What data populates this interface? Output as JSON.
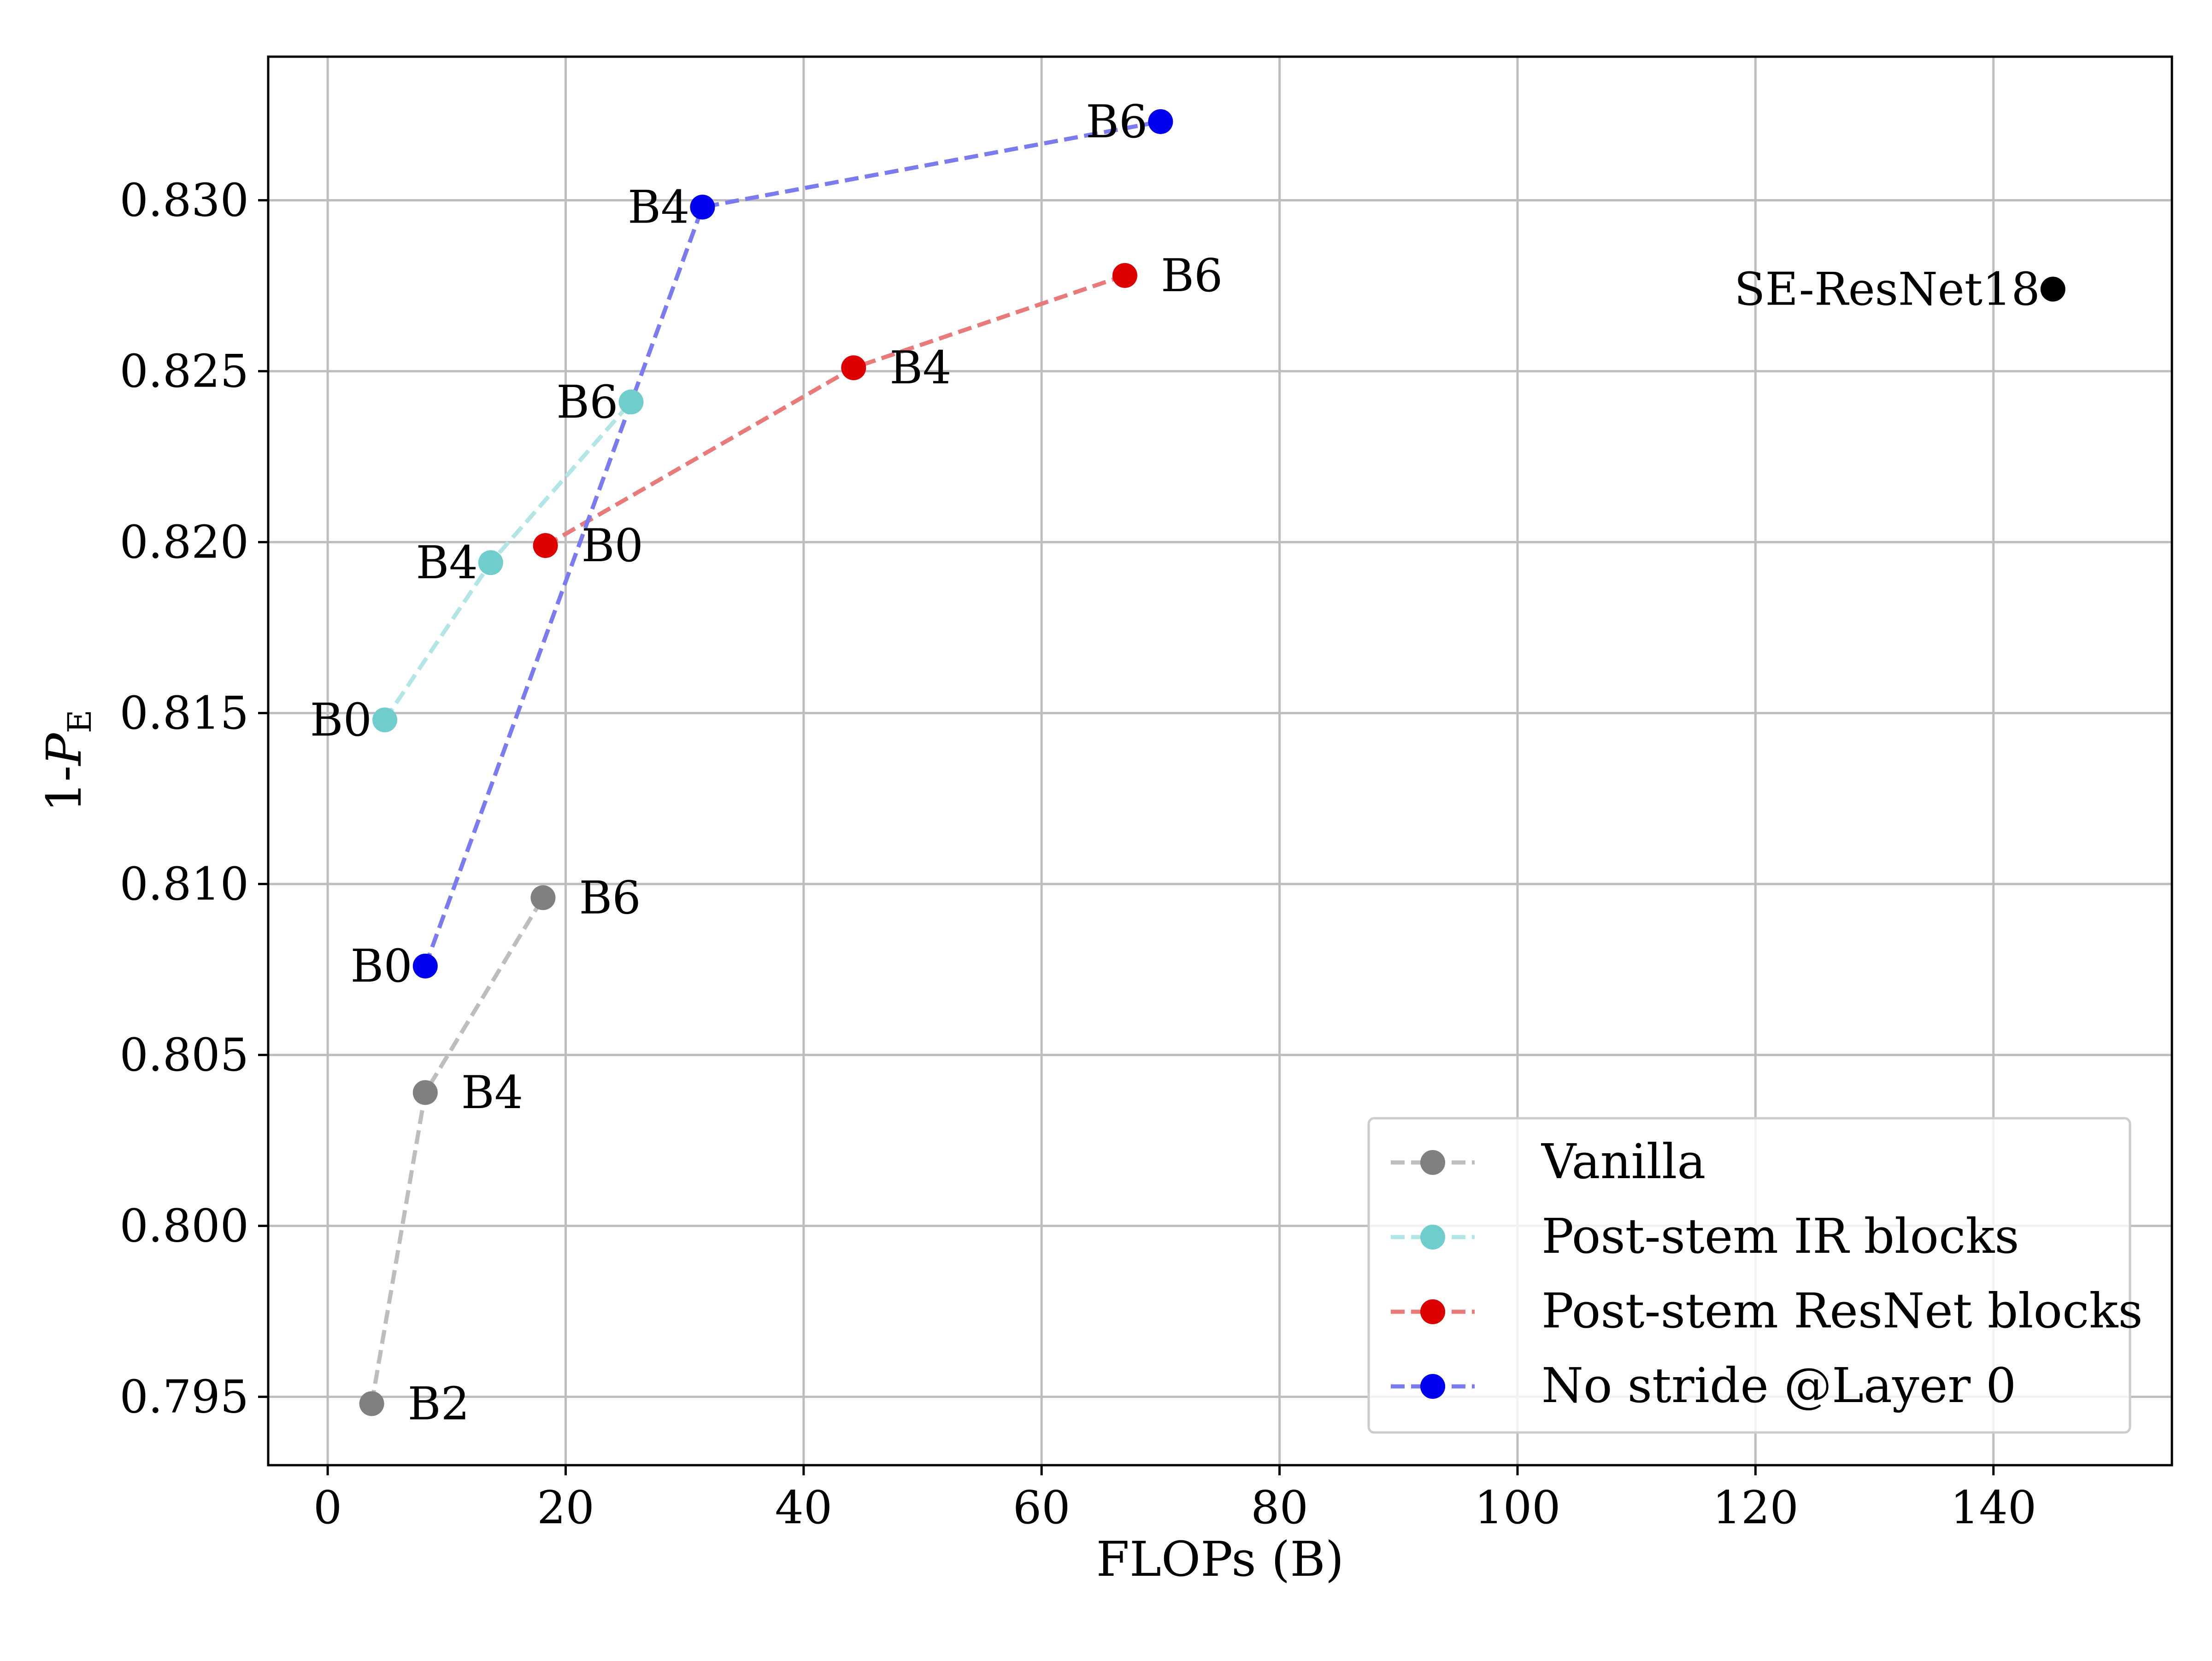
{
  "chart_data": {
    "type": "line",
    "title": "",
    "xlabel": "FLOPs (B)",
    "ylabel_prefix": "1-",
    "ylabel_var": "P",
    "ylabel_sub": "E",
    "xlim": [
      -5,
      155
    ],
    "ylim": [
      0.793,
      0.8342
    ],
    "xticks": [
      0,
      20,
      40,
      60,
      80,
      100,
      120,
      140
    ],
    "xtick_labels": [
      "0",
      "20",
      "40",
      "60",
      "80",
      "100",
      "120",
      "140"
    ],
    "yticks": [
      0.795,
      0.8,
      0.805,
      0.81,
      0.815,
      0.82,
      0.825,
      0.83
    ],
    "ytick_labels": [
      "0.795",
      "0.800",
      "0.805",
      "0.810",
      "0.815",
      "0.820",
      "0.825",
      "0.830"
    ],
    "grid": true,
    "legend_position": "bottom-right",
    "series": [
      {
        "name": "Vanilla",
        "line_color": "#bdbdbd",
        "marker_color": "#808080",
        "points": [
          {
            "x": 3.7,
            "y": 0.7948,
            "label": "B2",
            "side": "right"
          },
          {
            "x": 8.2,
            "y": 0.8039,
            "label": "B4",
            "side": "right"
          },
          {
            "x": 18.1,
            "y": 0.8096,
            "label": "B6",
            "side": "right"
          }
        ]
      },
      {
        "name": "Post-stem IR blocks",
        "line_color": "#b2e6e6",
        "marker_color": "#6fcdcd",
        "points": [
          {
            "x": 4.8,
            "y": 0.8148,
            "label": "B0",
            "side": "left"
          },
          {
            "x": 13.7,
            "y": 0.8194,
            "label": "B4",
            "side": "left"
          },
          {
            "x": 25.5,
            "y": 0.8241,
            "label": "B6",
            "side": "left"
          }
        ]
      },
      {
        "name": "Post-stem ResNet blocks",
        "line_color": "#e87a7a",
        "marker_color": "#dd0000",
        "points": [
          {
            "x": 18.3,
            "y": 0.8199,
            "label": "B0",
            "side": "right"
          },
          {
            "x": 44.2,
            "y": 0.8251,
            "label": "B4",
            "side": "right"
          },
          {
            "x": 67.0,
            "y": 0.8278,
            "label": "B6",
            "side": "right"
          }
        ]
      },
      {
        "name": "No stride @Layer 0",
        "line_color": "#7b7bf0",
        "marker_color": "#0000ee",
        "points": [
          {
            "x": 8.2,
            "y": 0.8076,
            "label": "B0",
            "side": "left"
          },
          {
            "x": 31.5,
            "y": 0.8298,
            "label": "B4",
            "side": "left"
          },
          {
            "x": 70.0,
            "y": 0.8323,
            "label": "B6",
            "side": "left"
          }
        ]
      }
    ],
    "standalone": [
      {
        "x": 145.0,
        "y": 0.8274,
        "label": "SE-ResNet18",
        "color": "#000000",
        "side": "left"
      }
    ]
  }
}
